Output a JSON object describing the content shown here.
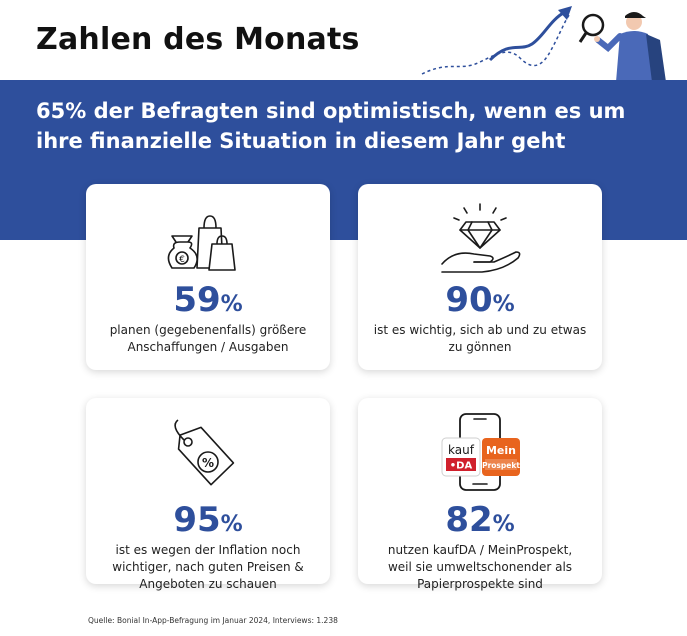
{
  "header": {
    "title": "Zahlen des Monats"
  },
  "headline": {
    "lines": [
      "65% der Befragten sind optimistisch, wenn es um",
      "ihre finanzielle Situation in diesem Jahr geht"
    ]
  },
  "cards": [
    {
      "value": "59",
      "unit": "%",
      "icon": "shopping-bags-icon",
      "icon_badge": "€",
      "text_lines": [
        "planen (gegebenenfalls) größere",
        "Anschaffungen / Ausgaben"
      ]
    },
    {
      "value": "90",
      "unit": "%",
      "icon": "diamond-hand-icon",
      "text_lines": [
        "ist es wichtig, sich ab und zu etwas",
        "zu gönnen"
      ]
    },
    {
      "value": "95",
      "unit": "%",
      "icon": "price-tag-icon",
      "icon_badge": "%",
      "text_lines": [
        "ist es wegen der Inflation noch",
        "wichtiger, nach guten Preisen &",
        "Angeboten zu schauen"
      ]
    },
    {
      "value": "82",
      "unit": "%",
      "icon": "smartphone-apps-icon",
      "apps": {
        "kaufda_top": "kauf",
        "kaufda_bottom": "•DA",
        "meinprospekt_top": "Mein",
        "meinprospekt_bottom": "Prospekt"
      },
      "text_lines": [
        "nutzen kaufDA / MeinProspekt,",
        "weil sie umweltschonender als",
        "Papierprospekte sind"
      ]
    }
  ],
  "footer": {
    "source": "Quelle: Bonial In-App-Befragung im Januar 2024, Interviews: 1.238"
  },
  "colors": {
    "brand_blue": "#2e4f9c",
    "kaufda_red": "#d0202c",
    "meinprospekt_orange": "#e8641e"
  }
}
